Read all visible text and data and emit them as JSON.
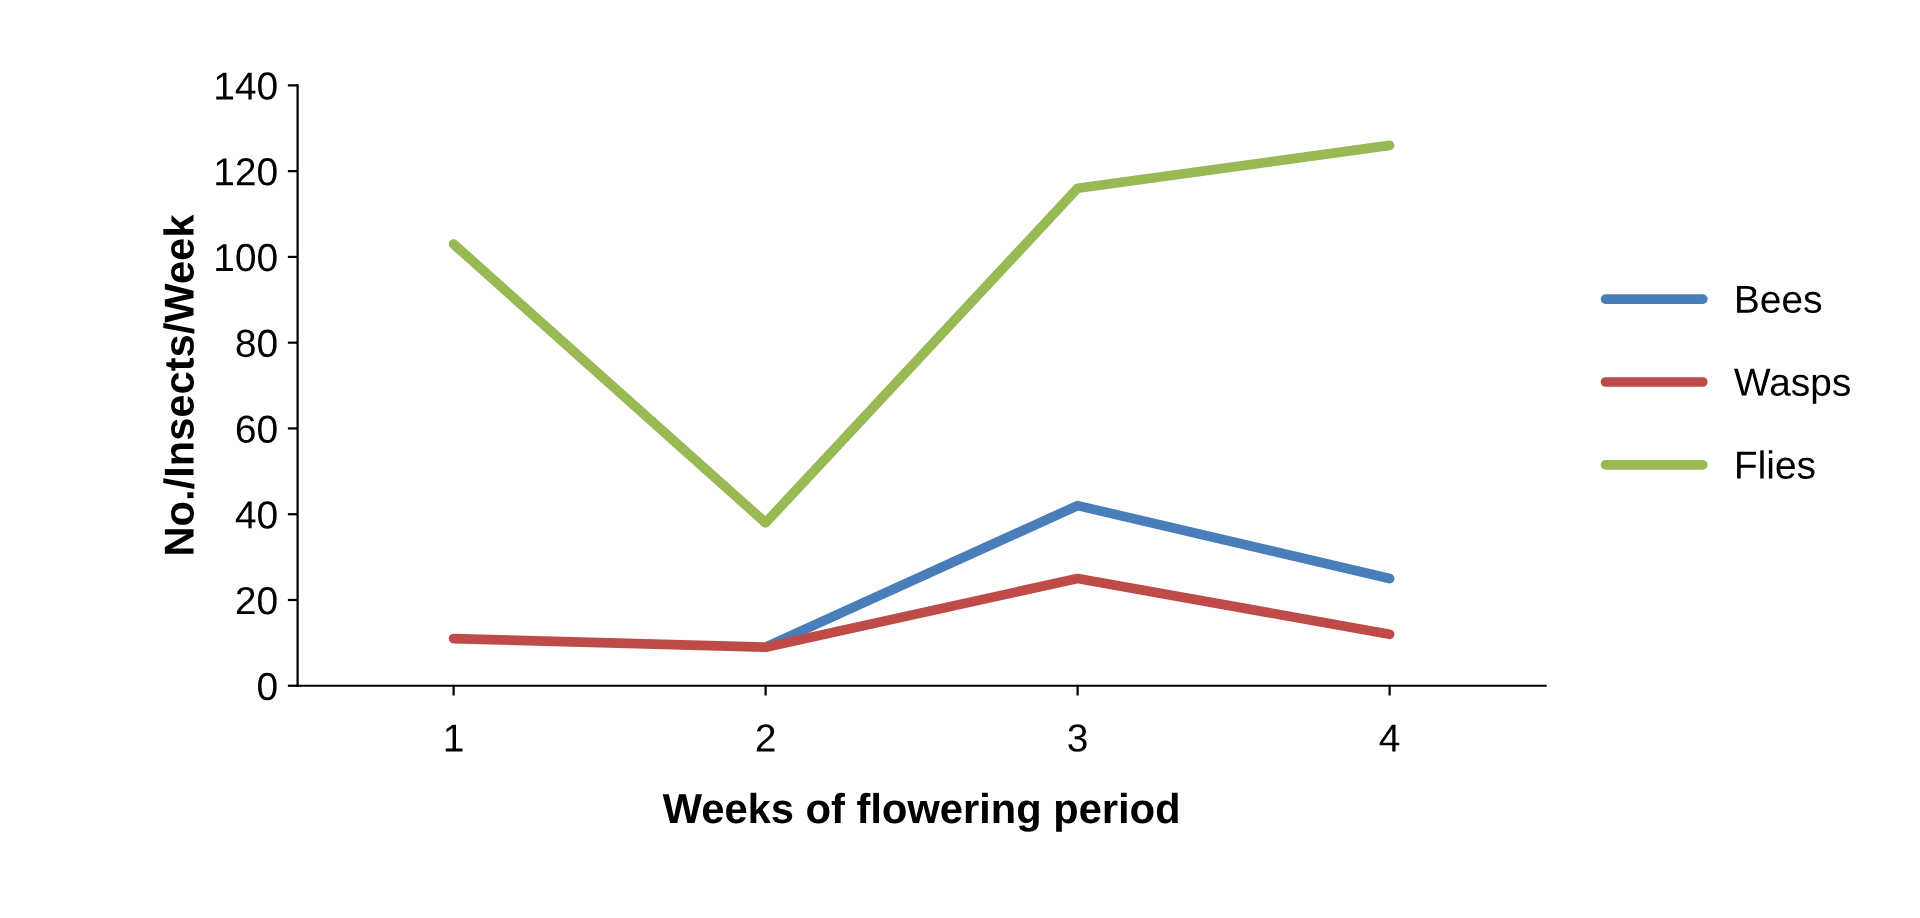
{
  "chart_data": {
    "type": "line",
    "xlabel": "Weeks of flowering period",
    "ylabel": "No./Insects/Week",
    "categories": [
      "1",
      "2",
      "3",
      "4"
    ],
    "series": [
      {
        "name": "Bees",
        "color": "#4a7ebb",
        "values": [
          null,
          9,
          42,
          25
        ]
      },
      {
        "name": "Wasps",
        "color": "#be4b48",
        "values": [
          11,
          9,
          25,
          12
        ]
      },
      {
        "name": "Flies",
        "color": "#98b954",
        "values": [
          103,
          38,
          116,
          126
        ]
      }
    ],
    "ylim": [
      0,
      140
    ],
    "yticks": [
      0,
      20,
      40,
      60,
      80,
      100,
      120,
      140
    ],
    "grid": false,
    "legend": "right",
    "marker": "none",
    "line_style": "solid"
  }
}
